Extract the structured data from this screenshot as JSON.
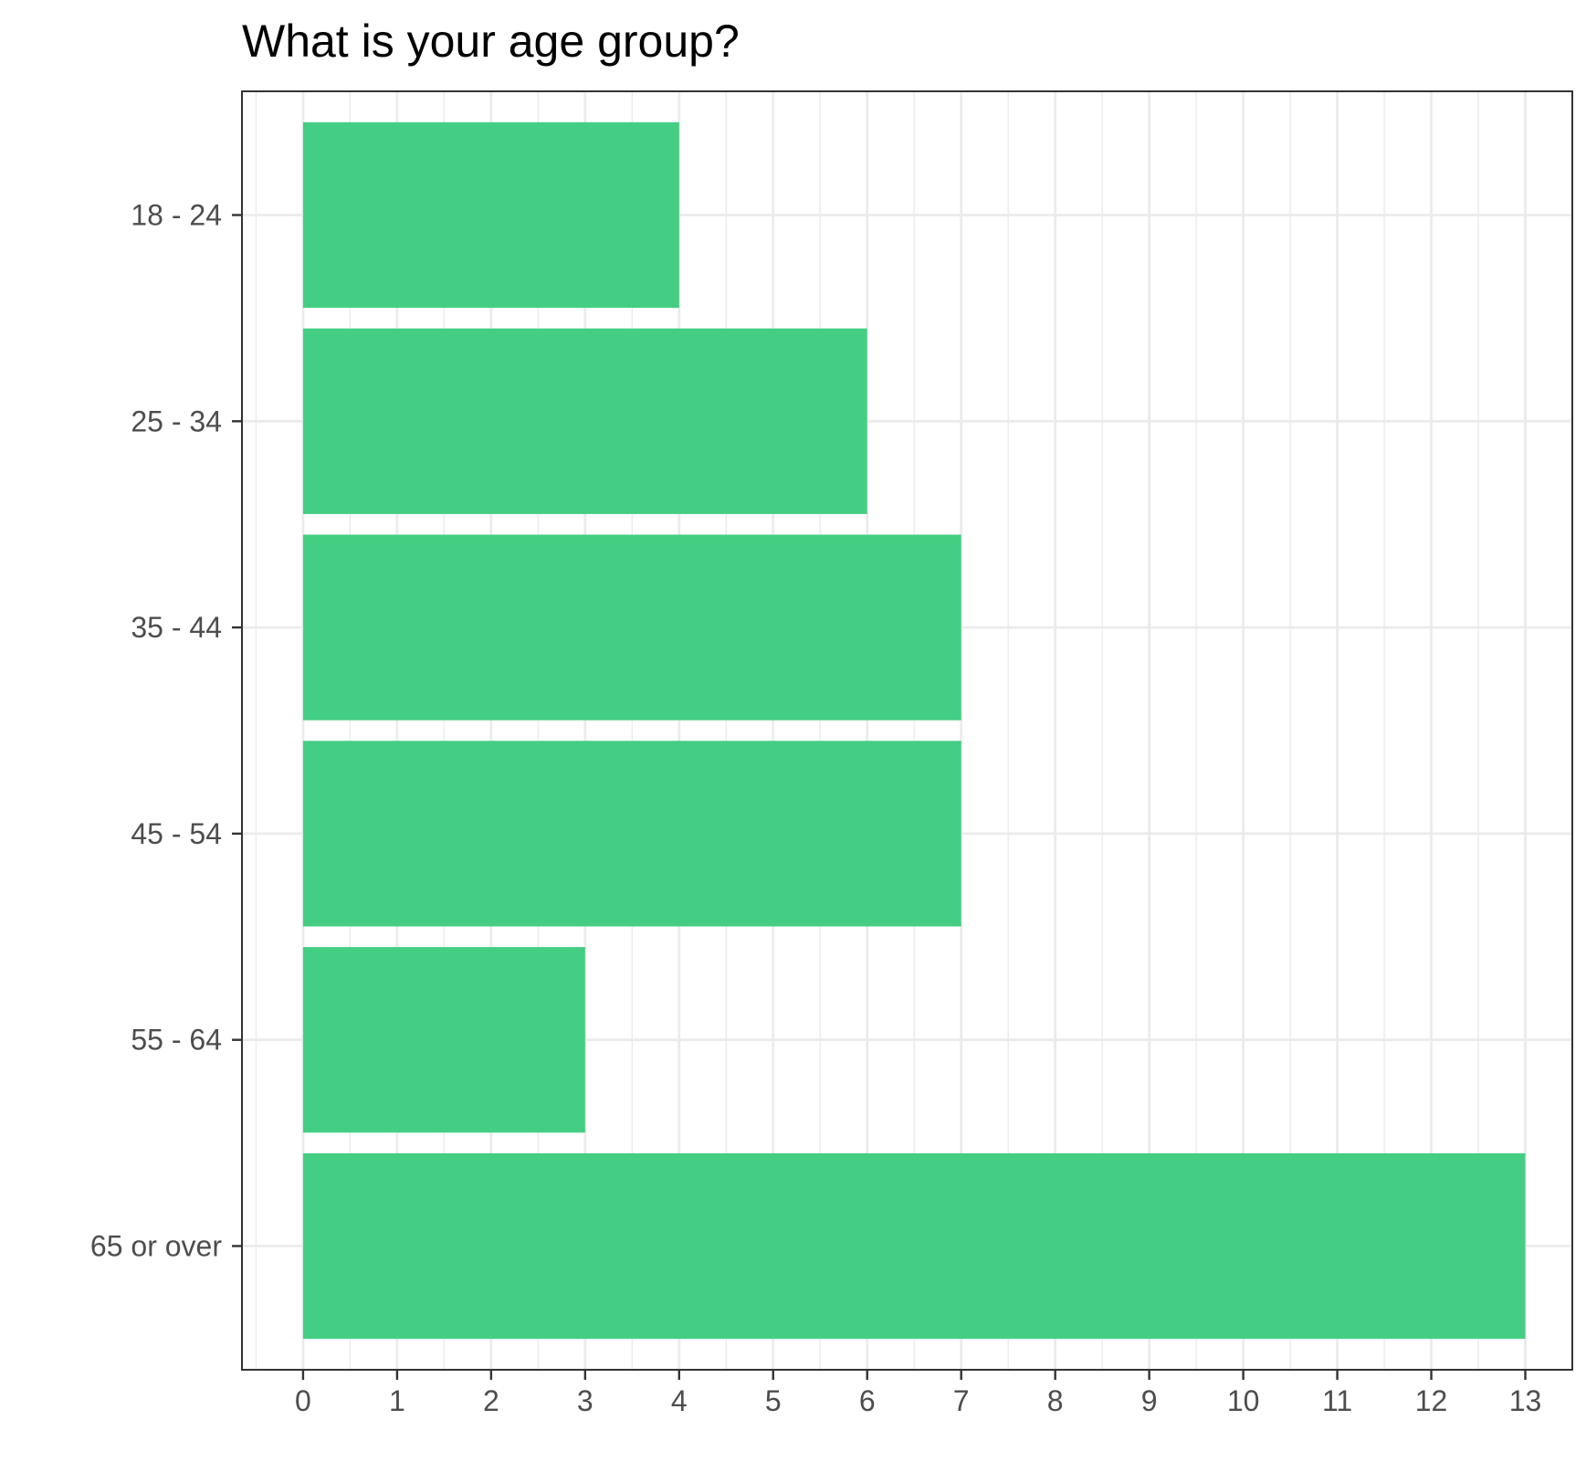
{
  "chart_data": {
    "type": "bar",
    "orientation": "horizontal",
    "title": "What is your age group?",
    "xlabel": "",
    "ylabel": "",
    "categories": [
      "18 - 24",
      "25 - 34",
      "35 - 44",
      "45 - 54",
      "55 - 64",
      "65 or over"
    ],
    "values": [
      4,
      6,
      7,
      7,
      3,
      13
    ],
    "xlim": [
      -0.65,
      13.5
    ],
    "xticks": [
      0,
      1,
      2,
      3,
      4,
      5,
      6,
      7,
      8,
      9,
      10,
      11,
      12,
      13
    ],
    "grid": true,
    "legend": "none",
    "bar_color": "#44CE83",
    "grid_color": "#EBEBEB",
    "axis_color": "#333333"
  }
}
